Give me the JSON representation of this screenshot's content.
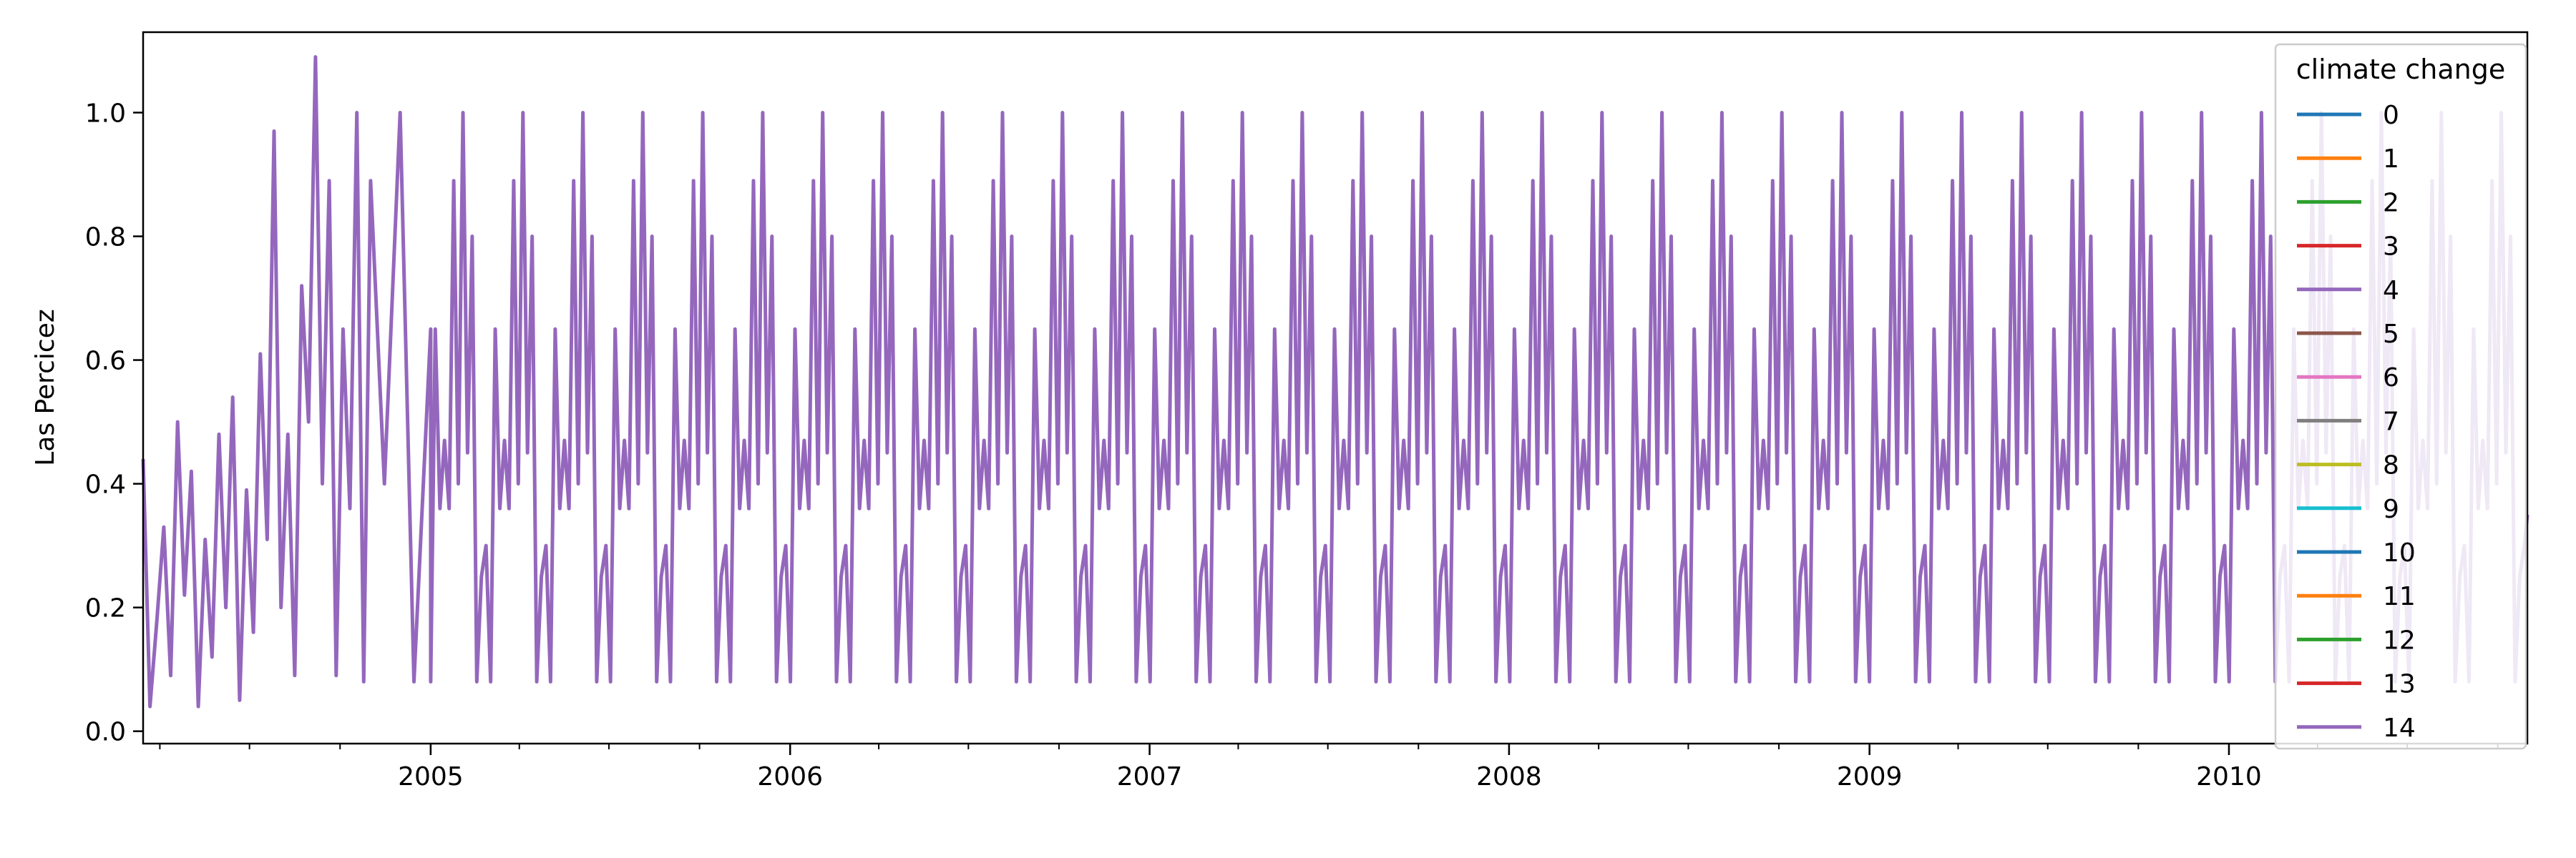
{
  "chart_data": {
    "type": "line",
    "title": "",
    "xlabel": "",
    "ylabel": "Las Percicez",
    "xlim": [
      "2004-03-15",
      "2010-10-31"
    ],
    "ylim": [
      -0.02,
      1.13
    ],
    "grid": false,
    "legend": {
      "title": "climate change",
      "placement": "top-right"
    },
    "x_ticks": [
      "2005",
      "2006",
      "2007",
      "2008",
      "2009",
      "2010"
    ],
    "x_tick_dates": [
      "2005-01-01",
      "2006-01-01",
      "2007-01-01",
      "2008-01-01",
      "2009-01-01",
      "2010-01-01"
    ],
    "y_ticks": [
      "0.0",
      "0.2",
      "0.4",
      "0.6",
      "0.8",
      "1.0"
    ],
    "y_tick_values": [
      0.0,
      0.2,
      0.4,
      0.6,
      0.8,
      1.0
    ],
    "series": [
      {
        "name": "0",
        "color": "#1f77b4"
      },
      {
        "name": "1",
        "color": "#ff7f0e"
      },
      {
        "name": "2",
        "color": "#2ca02c"
      },
      {
        "name": "3",
        "color": "#d62728"
      },
      {
        "name": "4",
        "color": "#9467bd"
      },
      {
        "name": "5",
        "color": "#8c564b"
      },
      {
        "name": "6",
        "color": "#e377c2"
      },
      {
        "name": "7",
        "color": "#7f7f7f"
      },
      {
        "name": "8",
        "color": "#bcbd22"
      },
      {
        "name": "9",
        "color": "#17becf"
      },
      {
        "name": "10",
        "color": "#1f77b4"
      },
      {
        "name": "11",
        "color": "#ff7f0e"
      },
      {
        "name": "12",
        "color": "#2ca02c"
      },
      {
        "name": "13",
        "color": "#d62728"
      },
      {
        "name": "14",
        "color": "#9467bd",
        "x": [
          "2004-03-15",
          "2004-03-22",
          "2004-03-29",
          "2004-04-05",
          "2004-04-12",
          "2004-04-19",
          "2004-04-26",
          "2004-05-03",
          "2004-05-10",
          "2004-05-17",
          "2004-05-24",
          "2004-05-31",
          "2004-06-07",
          "2004-06-14",
          "2004-06-21",
          "2004-06-28",
          "2004-07-05",
          "2004-07-12",
          "2004-07-19",
          "2004-07-26",
          "2004-08-02",
          "2004-08-09",
          "2004-08-16",
          "2004-08-23",
          "2004-08-30",
          "2004-09-06",
          "2004-09-13",
          "2004-09-20",
          "2004-09-27",
          "2004-10-04",
          "2004-10-11",
          "2004-10-18",
          "2004-10-25",
          "2004-11-01",
          "2004-11-15",
          "2004-12-01",
          "2004-12-15",
          "2005-01-01",
          "2010-10-31"
        ],
        "y": [
          0.44,
          0.04,
          0.18,
          0.33,
          0.09,
          0.5,
          0.22,
          0.42,
          0.04,
          0.31,
          0.12,
          0.48,
          0.2,
          0.54,
          0.05,
          0.39,
          0.16,
          0.61,
          0.31,
          0.97,
          0.2,
          0.48,
          0.09,
          0.72,
          0.5,
          1.09,
          0.4,
          0.89,
          0.09,
          0.65,
          0.36,
          1.0,
          0.08,
          0.89,
          0.4,
          1.0,
          0.08,
          0.65,
          0.35
        ],
        "pattern_note": "seasonal oscillation ~0.08 to ~1.00 with ~0.89 and ~0.65 secondary peaks, repeating every ~0.17 year through 2010"
      }
    ]
  }
}
